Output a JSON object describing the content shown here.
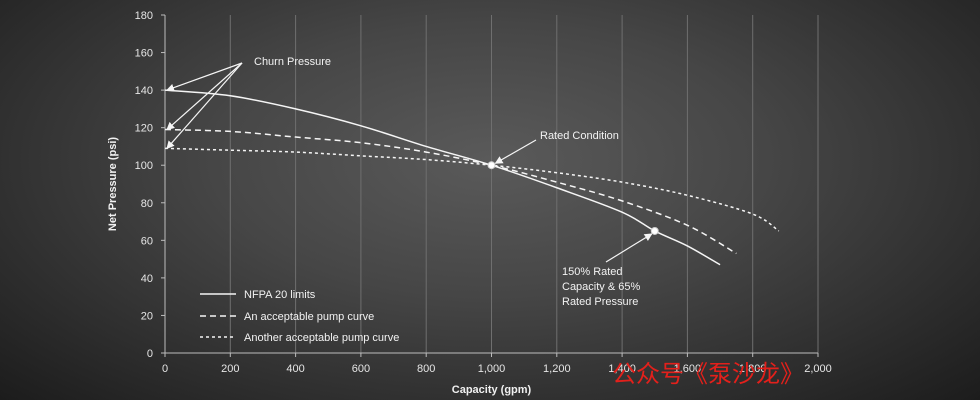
{
  "chart_data": {
    "type": "line",
    "title": "",
    "xlabel": "Capacity (gpm)",
    "ylabel": "Net Pressure (psi)",
    "xlim": [
      0,
      2000
    ],
    "ylim": [
      0,
      180
    ],
    "x_ticks": [
      0,
      200,
      400,
      600,
      800,
      1000,
      1200,
      1400,
      1600,
      1800,
      2000
    ],
    "x_tick_labels": [
      "0",
      "200",
      "400",
      "600",
      "800",
      "1,000",
      "1,200",
      "1,400",
      "1,600",
      "1,800",
      "2,000"
    ],
    "y_ticks": [
      0,
      20,
      40,
      60,
      80,
      100,
      120,
      140,
      160,
      180
    ],
    "grid": "vertical",
    "legend_position": "bottom-left",
    "series": [
      {
        "name": "NFPA 20 limits",
        "style": "solid",
        "points": [
          [
            0,
            140
          ],
          [
            200,
            137
          ],
          [
            400,
            130
          ],
          [
            600,
            121
          ],
          [
            800,
            110
          ],
          [
            1000,
            100
          ],
          [
            1200,
            88
          ],
          [
            1400,
            75
          ],
          [
            1500,
            65
          ],
          [
            1600,
            57
          ],
          [
            1700,
            47
          ]
        ]
      },
      {
        "name": "An acceptable pump curve",
        "style": "dashed",
        "points": [
          [
            0,
            119
          ],
          [
            200,
            118
          ],
          [
            400,
            115
          ],
          [
            600,
            112
          ],
          [
            800,
            107
          ],
          [
            1000,
            100
          ],
          [
            1200,
            91
          ],
          [
            1400,
            81
          ],
          [
            1600,
            68
          ],
          [
            1750,
            53
          ]
        ]
      },
      {
        "name": "Another acceptable pump curve",
        "style": "dotted",
        "points": [
          [
            0,
            109
          ],
          [
            200,
            108
          ],
          [
            400,
            107
          ],
          [
            600,
            105
          ],
          [
            800,
            103
          ],
          [
            1000,
            100
          ],
          [
            1200,
            96
          ],
          [
            1400,
            91
          ],
          [
            1600,
            84
          ],
          [
            1800,
            74
          ],
          [
            1880,
            65
          ]
        ]
      }
    ],
    "markers": [
      [
        1000,
        100
      ],
      [
        1500,
        65
      ]
    ],
    "annotations": [
      {
        "id": "churn",
        "lines": [
          "Churn Pressure"
        ]
      },
      {
        "id": "rated",
        "lines": [
          "Rated Condition"
        ]
      },
      {
        "id": "rated150",
        "lines": [
          "150% Rated",
          "Capacity & 65%",
          "Rated Pressure"
        ]
      }
    ]
  },
  "watermark": "公众号《泵沙龙》"
}
